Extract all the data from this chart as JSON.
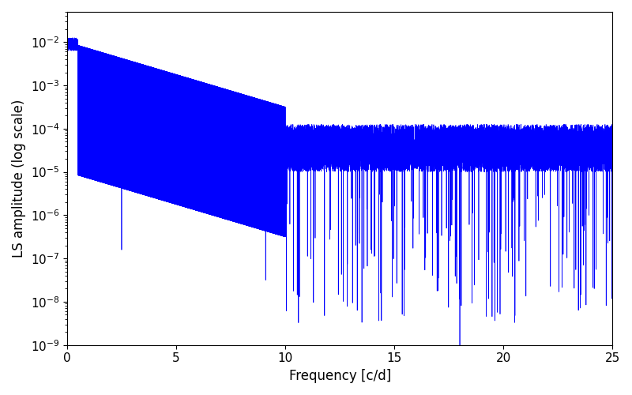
{
  "title": "",
  "xlabel": "Frequency [c/d]",
  "ylabel": "LS amplitude (log scale)",
  "xlim": [
    0,
    25
  ],
  "ylim": [
    1e-09,
    0.05
  ],
  "line_color": "#0000ff",
  "line_width": 0.5,
  "figsize": [
    8.0,
    5.0
  ],
  "dpi": 100,
  "freq_max": 25.0,
  "n_points": 15000,
  "seed": 12345,
  "background_color": "#ffffff",
  "tick_label_size": 11
}
